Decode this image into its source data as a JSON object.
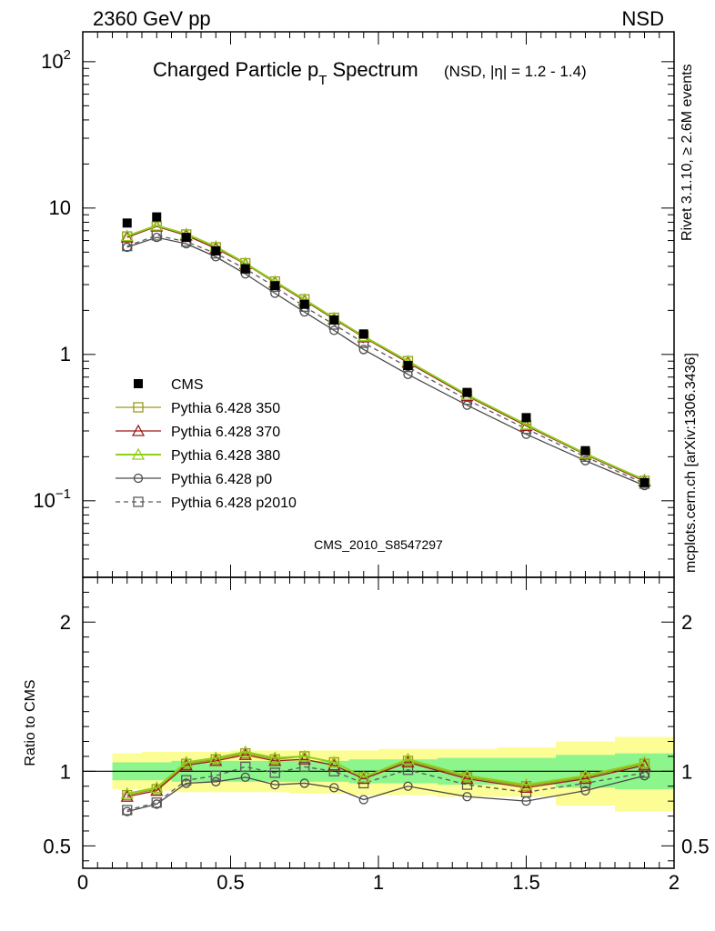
{
  "header": {
    "left": "2360 GeV pp",
    "right": "NSD"
  },
  "title": {
    "main_prefix": "Charged Particle p",
    "main_sub": "T",
    "main_suffix": " Spectrum",
    "qualifier": "(NSD, |η| = 1.2 - 1.4)"
  },
  "side_labels": {
    "rivet": "Rivet 3.1.10, ≥ 2.6M events",
    "mcplots": "mcplots.cern.ch [arXiv:1306.3436]"
  },
  "analysis_id": "CMS_2010_S8547297",
  "ratio_ylabel": "Ratio to CMS",
  "colors": {
    "cms": "#000000",
    "p350": "#9a9a1e",
    "p370": "#9b1b1b",
    "p380": "#8ecf1a",
    "p0": "#4a4a4a",
    "p2010": "#5a5a5a",
    "band_inner": "#8cf58c",
    "band_outer": "#fdfd96"
  },
  "chart_data": [
    {
      "type": "line",
      "yscale": "log",
      "xlim": [
        0,
        2
      ],
      "ylim": [
        0.03,
        160
      ],
      "y_ticks": [
        {
          "value": 0.1,
          "label": "10",
          "exp": "−1"
        },
        {
          "value": 1,
          "label": "1",
          "exp": ""
        },
        {
          "value": 10,
          "label": "10",
          "exp": ""
        },
        {
          "value": 100,
          "label": "10",
          "exp": "2"
        }
      ],
      "legend_position": "bottom-left",
      "x": [
        0.15,
        0.25,
        0.35,
        0.45,
        0.55,
        0.65,
        0.75,
        0.85,
        0.95,
        1.1,
        1.3,
        1.5,
        1.7,
        1.9
      ],
      "series": [
        {
          "name": "CMS",
          "key": "cms",
          "marker": "filled-square",
          "line": "none",
          "values": [
            7.9,
            8.7,
            6.3,
            5.1,
            3.85,
            2.95,
            2.2,
            1.72,
            1.38,
            0.84,
            0.55,
            0.37,
            0.22,
            0.133
          ]
        },
        {
          "name": "Pythia 6.428 350",
          "key": "p350",
          "marker": "open-square",
          "line": "solid",
          "values": [
            6.4,
            7.5,
            6.6,
            5.4,
            4.2,
            3.15,
            2.38,
            1.78,
            1.33,
            0.9,
            0.53,
            0.33,
            0.21,
            0.137
          ]
        },
        {
          "name": "Pythia 6.428 370",
          "key": "p370",
          "marker": "open-triangle",
          "line": "solid",
          "values": [
            6.3,
            7.5,
            6.5,
            5.3,
            4.15,
            3.1,
            2.33,
            1.74,
            1.31,
            0.88,
            0.52,
            0.325,
            0.207,
            0.136
          ]
        },
        {
          "name": "Pythia 6.428 380",
          "key": "p380",
          "marker": "open-triangle",
          "line": "solid",
          "values": [
            6.45,
            7.6,
            6.65,
            5.45,
            4.2,
            3.15,
            2.37,
            1.77,
            1.33,
            0.9,
            0.53,
            0.332,
            0.21,
            0.139
          ]
        },
        {
          "name": "Pythia 6.428 p0",
          "key": "p0",
          "marker": "open-circle",
          "line": "solid",
          "values": [
            5.4,
            6.3,
            5.7,
            4.65,
            3.55,
            2.62,
            1.95,
            1.46,
            1.08,
            0.73,
            0.45,
            0.285,
            0.188,
            0.127
          ]
        },
        {
          "name": "Pythia 6.428 p2010",
          "key": "p2010",
          "marker": "open-square",
          "line": "dashed",
          "values": [
            5.5,
            6.5,
            5.9,
            4.9,
            3.85,
            2.9,
            2.12,
            1.6,
            1.2,
            0.82,
            0.49,
            0.31,
            0.2,
            0.131
          ]
        }
      ]
    },
    {
      "type": "line",
      "xlim": [
        0,
        2
      ],
      "ylim": [
        0.35,
        2.3
      ],
      "ylabel": "Ratio to CMS",
      "x_ticks": [
        {
          "value": 0,
          "label": "0"
        },
        {
          "value": 0.5,
          "label": "0.5"
        },
        {
          "value": 1,
          "label": "1"
        },
        {
          "value": 1.5,
          "label": "1.5"
        },
        {
          "value": 2,
          "label": "2"
        }
      ],
      "y_ticks": [
        {
          "value": 0.5,
          "label": "0.5"
        },
        {
          "value": 1,
          "label": "1"
        },
        {
          "value": 2,
          "label": "2"
        }
      ],
      "bands": {
        "bins": [
          [
            0.1,
            0.2
          ],
          [
            0.2,
            0.3
          ],
          [
            0.3,
            0.4
          ],
          [
            0.4,
            0.5
          ],
          [
            0.5,
            0.6
          ],
          [
            0.6,
            0.7
          ],
          [
            0.7,
            0.8
          ],
          [
            0.8,
            0.9
          ],
          [
            0.9,
            1.0
          ],
          [
            1.0,
            1.2
          ],
          [
            1.2,
            1.4
          ],
          [
            1.4,
            1.6
          ],
          [
            1.6,
            1.8
          ],
          [
            1.8,
            2.0
          ]
        ],
        "inner": [
          [
            0.94,
            1.06
          ],
          [
            0.94,
            1.06
          ],
          [
            0.93,
            1.07
          ],
          [
            0.93,
            1.07
          ],
          [
            0.93,
            1.07
          ],
          [
            0.93,
            1.07
          ],
          [
            0.93,
            1.07
          ],
          [
            0.93,
            1.07
          ],
          [
            0.92,
            1.08
          ],
          [
            0.92,
            1.08
          ],
          [
            0.91,
            1.09
          ],
          [
            0.91,
            1.09
          ],
          [
            0.89,
            1.11
          ],
          [
            0.88,
            1.12
          ]
        ],
        "outer": [
          [
            0.88,
            1.12
          ],
          [
            0.87,
            1.13
          ],
          [
            0.86,
            1.13
          ],
          [
            0.86,
            1.13
          ],
          [
            0.86,
            1.14
          ],
          [
            0.86,
            1.14
          ],
          [
            0.85,
            1.14
          ],
          [
            0.85,
            1.14
          ],
          [
            0.84,
            1.14
          ],
          [
            0.84,
            1.15
          ],
          [
            0.83,
            1.15
          ],
          [
            0.83,
            1.16
          ],
          [
            0.77,
            1.2
          ],
          [
            0.73,
            1.23
          ]
        ]
      },
      "x": [
        0.15,
        0.25,
        0.35,
        0.45,
        0.55,
        0.65,
        0.75,
        0.85,
        0.95,
        1.1,
        1.3,
        1.5,
        1.7,
        1.9
      ],
      "series": [
        {
          "key": "p350",
          "marker": "open-square",
          "line": "solid",
          "values": [
            0.84,
            0.88,
            1.05,
            1.08,
            1.12,
            1.08,
            1.1,
            1.06,
            0.96,
            1.07,
            0.96,
            0.9,
            0.96,
            1.05
          ]
        },
        {
          "key": "p370",
          "marker": "open-triangle",
          "line": "solid",
          "values": [
            0.83,
            0.87,
            1.04,
            1.07,
            1.11,
            1.07,
            1.08,
            1.04,
            0.95,
            1.06,
            0.95,
            0.89,
            0.95,
            1.04
          ]
        },
        {
          "key": "p380",
          "marker": "open-triangle",
          "line": "solid",
          "values": [
            0.85,
            0.89,
            1.06,
            1.09,
            1.13,
            1.09,
            1.1,
            1.06,
            0.96,
            1.08,
            0.97,
            0.91,
            0.97,
            1.06
          ]
        },
        {
          "key": "p0",
          "marker": "open-circle",
          "line": "solid",
          "values": [
            0.73,
            0.78,
            0.92,
            0.93,
            0.96,
            0.91,
            0.92,
            0.89,
            0.81,
            0.9,
            0.83,
            0.8,
            0.87,
            0.97
          ]
        },
        {
          "key": "p2010",
          "marker": "open-square",
          "line": "dashed",
          "values": [
            0.74,
            0.79,
            0.94,
            0.97,
            1.03,
            0.99,
            1.03,
            1.0,
            0.92,
            1.01,
            0.91,
            0.86,
            0.92,
            0.99
          ]
        }
      ]
    }
  ]
}
